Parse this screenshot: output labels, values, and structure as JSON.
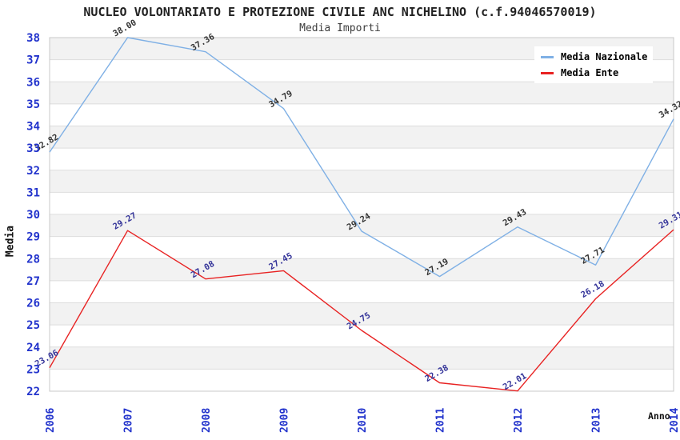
{
  "chart_data": {
    "type": "line",
    "title": "NUCLEO VOLONTARIATO E PROTEZIONE CIVILE ANC NICHELINO (c.f.94046570019)",
    "subtitle": "Media Importi",
    "xlabel": "Anno",
    "ylabel": "Media",
    "x": [
      2006,
      2007,
      2008,
      2009,
      2010,
      2011,
      2012,
      2013,
      2014
    ],
    "ylim": [
      22,
      38
    ],
    "ytick_step": 1,
    "grid": true,
    "legend_position": "top-right",
    "series": [
      {
        "name": "Media Nazionale",
        "color": "#7FB0E5",
        "label_color": "#333333",
        "values": [
          32.82,
          38.0,
          37.36,
          34.79,
          29.24,
          27.19,
          29.43,
          27.71,
          34.32
        ],
        "point_labels": [
          "32.82",
          "38.00",
          "37.36",
          "34.79",
          "29.24",
          "27.19",
          "29.43",
          "27.71",
          "34.32"
        ]
      },
      {
        "name": "Media Ente",
        "color": "#E82222",
        "label_color": "#333399",
        "values": [
          23.06,
          29.27,
          27.08,
          27.45,
          24.75,
          22.38,
          22.01,
          26.18,
          29.31
        ],
        "point_labels": [
          "23.06",
          "29.27",
          "27.08",
          "27.45",
          "24.75",
          "22.38",
          "22.01",
          "26.18",
          "29.31"
        ]
      }
    ],
    "styles": {
      "tick_label_color": "#2233CC",
      "band_color": "#F2F2F2",
      "grid_color": "#DDDDDD",
      "border_color": "#C8C8C8",
      "background": "#FFFFFF"
    }
  }
}
